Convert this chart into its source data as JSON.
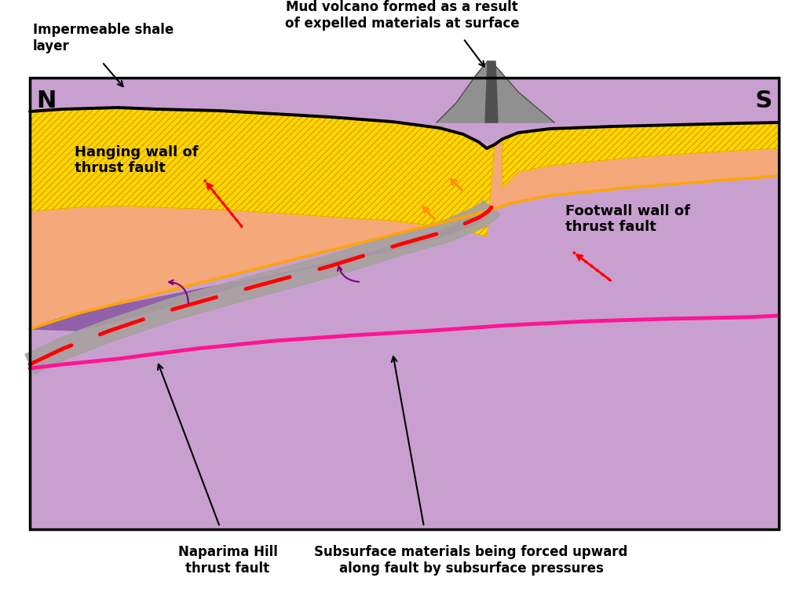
{
  "bg_color": "#ffffff",
  "border_color": "#000000",
  "yellow_color": "#FFD700",
  "yellow_hatch_color": "#FFA500",
  "hanging_wall_color": "#F5A87A",
  "footwall_color": "#C8A0D0",
  "dark_purple_color": "#9060A8",
  "gray_zone_color": "#A8A0A0",
  "fault_color": "#FF0000",
  "pink_color": "#FF1493",
  "orange_line_color": "#FFA500",
  "volcano_color": "#909090",
  "volcano_dark": "#505050",
  "label_shale": "Impermeable shale\nlayer",
  "label_mud_volcano": "Mud volcano formed as a result\nof expelled materials at surface",
  "label_hanging": "Hanging wall of\nthrust fault",
  "label_footwall": "Footwall wall of\nthrust fault",
  "label_naparima": "Naparima Hill\nthrust fault",
  "label_subsurface": "Subsurface materials being forced upward\nalong fault by subsurface pressures",
  "figsize": [
    10.24,
    7.59
  ],
  "dpi": 100
}
